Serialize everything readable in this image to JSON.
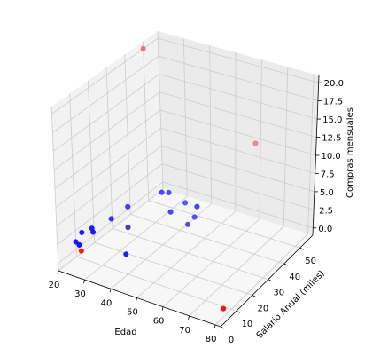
{
  "chart_data": {
    "type": "scatter",
    "projection": "3d",
    "title": "",
    "xlabel": "Edad",
    "ylabel": "Salario Anual (miles)",
    "zlabel": "Compras mensuales",
    "xlim": [
      20,
      82
    ],
    "ylim": [
      0,
      58
    ],
    "zlim": [
      -1,
      21
    ],
    "x_ticks": [
      "20",
      "30",
      "40",
      "50",
      "60",
      "70",
      "80"
    ],
    "y_ticks": [
      "0",
      "10",
      "20",
      "30",
      "40",
      "50"
    ],
    "z_ticks": [
      "0.0",
      "2.5",
      "5.0",
      "7.5",
      "10.0",
      "12.5",
      "15.0",
      "17.5",
      "20.0"
    ],
    "grid": true,
    "legend": "none",
    "colors": {
      "blue": "#0000ff",
      "red": "#ff0000",
      "pane_side": "#f2f2f2",
      "pane_back": "#ebebeb",
      "pane_floor": "#f7f7f7",
      "grid": "#cccccc"
    },
    "series": [
      {
        "color": "#0000ff",
        "points": [
          {
            "x": 20,
            "y": 10,
            "z": 1
          },
          {
            "x": 21,
            "y": 12,
            "z": 2
          },
          {
            "x": 22,
            "y": 9,
            "z": 1
          },
          {
            "x": 24,
            "y": 14,
            "z": 2
          },
          {
            "x": 25,
            "y": 12,
            "z": 3
          },
          {
            "x": 27,
            "y": 20,
            "z": 3
          },
          {
            "x": 30,
            "y": 25,
            "z": 4
          },
          {
            "x": 32,
            "y": 22,
            "z": 2
          },
          {
            "x": 38,
            "y": 12,
            "z": 1
          },
          {
            "x": 40,
            "y": 30,
            "z": 6
          },
          {
            "x": 42,
            "y": 31,
            "z": 6
          },
          {
            "x": 44,
            "y": 29,
            "z": 4
          },
          {
            "x": 45,
            "y": 36,
            "z": 4
          },
          {
            "x": 48,
            "y": 33,
            "z": 2
          },
          {
            "x": 50,
            "y": 34,
            "z": 3
          },
          {
            "x": 55,
            "y": 28,
            "z": 6
          }
        ]
      },
      {
        "color": "#ff0000",
        "points": [
          {
            "x": 20,
            "y": 50,
            "z": 20
          },
          {
            "x": 22,
            "y": 10,
            "z": 0
          },
          {
            "x": 80,
            "y": 5,
            "z": 0
          },
          {
            "x": 60,
            "y": 55,
            "z": 10
          }
        ]
      }
    ]
  }
}
